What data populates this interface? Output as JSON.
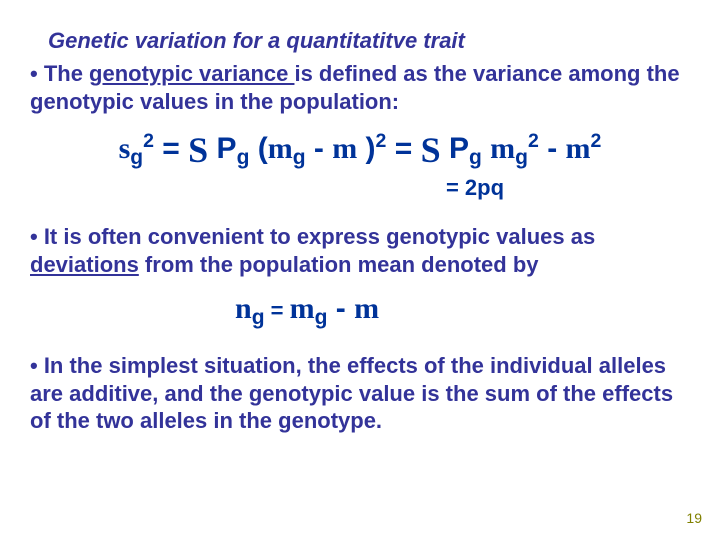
{
  "colors": {
    "title": "#333399",
    "body": "#333399",
    "formula": "#003399",
    "pagenum": "#808000"
  },
  "title": "Genetic variation for a quantitatitve trait",
  "p1_a": "• The ",
  "p1_u": "genotypic variance ",
  "p1_b": " is defined as the variance among the genotypic values in the population:",
  "f1": {
    "s": "s",
    "g": "g",
    "sq": "2",
    "eq": " = ",
    "S": "S",
    "sp": " ",
    "P": "P",
    "lpar": " (",
    "m": "m",
    "minus": " - ",
    "rpar": " )",
    "eq2": " = ",
    "minus2": " - "
  },
  "f2_a": "= 2",
  "f2_b": "pq",
  "p2_a": "• It is often convenient to express genotypic values as ",
  "p2_u": "deviations",
  "p2_b": " from the population mean denoted by",
  "f3": {
    "n": "n",
    "g": "g",
    "eq": " = ",
    "m": "m",
    "minus": " - "
  },
  "p3": "• In the simplest situation, the effects of the individual alleles are additive, and the genotypic value is the sum of the effects of the two alleles in the genotype.",
  "pagenum": "19"
}
